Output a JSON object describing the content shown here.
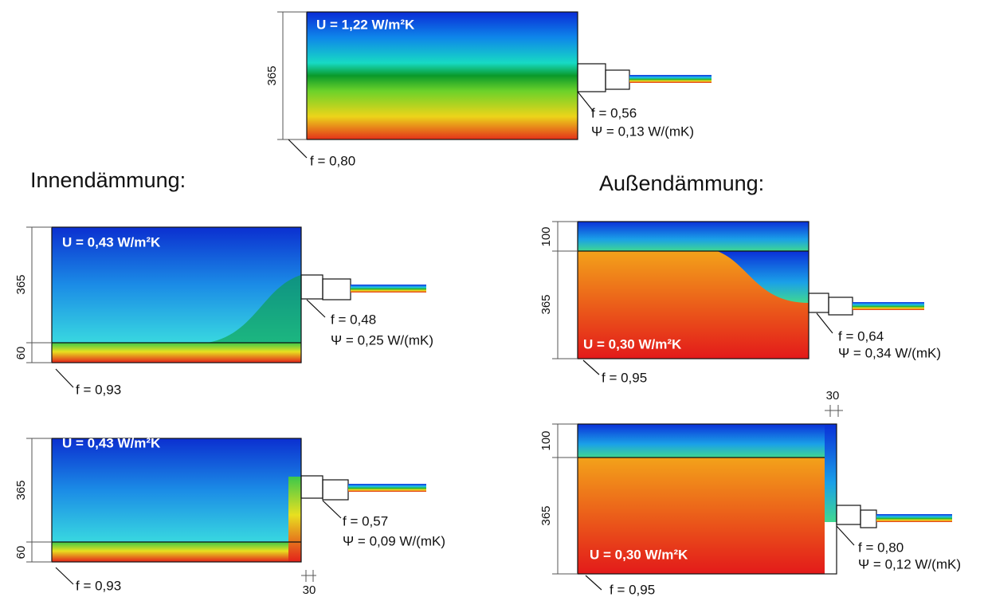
{
  "headings": {
    "inside": "Innendämmung:",
    "outside": "Außendämmung:"
  },
  "panels": [
    {
      "u": "U = 1,22 W/m²K",
      "dims": [
        "365"
      ],
      "f_corner": "f = 0,80",
      "f_window": "f = 0,56",
      "psi": "Ψ = 0,13 W/(mK)"
    },
    {
      "u": "U = 0,43 W/m²K",
      "dims": [
        "365",
        "60"
      ],
      "f_corner": "f = 0,93",
      "f_window": "f = 0,48",
      "psi": "Ψ = 0,25 W/(mK)"
    },
    {
      "u": "U = 0,43 W/m²K",
      "dims": [
        "365",
        "60",
        "30"
      ],
      "f_corner": "f = 0,93",
      "f_window": "f = 0,57",
      "psi": "Ψ = 0,09 W/(mK)"
    },
    {
      "u": "U = 0,30 W/m²K",
      "dims": [
        "100",
        "365"
      ],
      "f_corner": "f = 0,95",
      "f_window": "f = 0,64",
      "psi": "Ψ = 0,34 W/(mK)"
    },
    {
      "u": "U = 0,30 W/m²K",
      "dims": [
        "100",
        "365",
        "30"
      ],
      "f_corner": "f = 0,95",
      "f_window": "f = 0,80",
      "psi": "Ψ = 0,12 W/(mK)"
    }
  ]
}
